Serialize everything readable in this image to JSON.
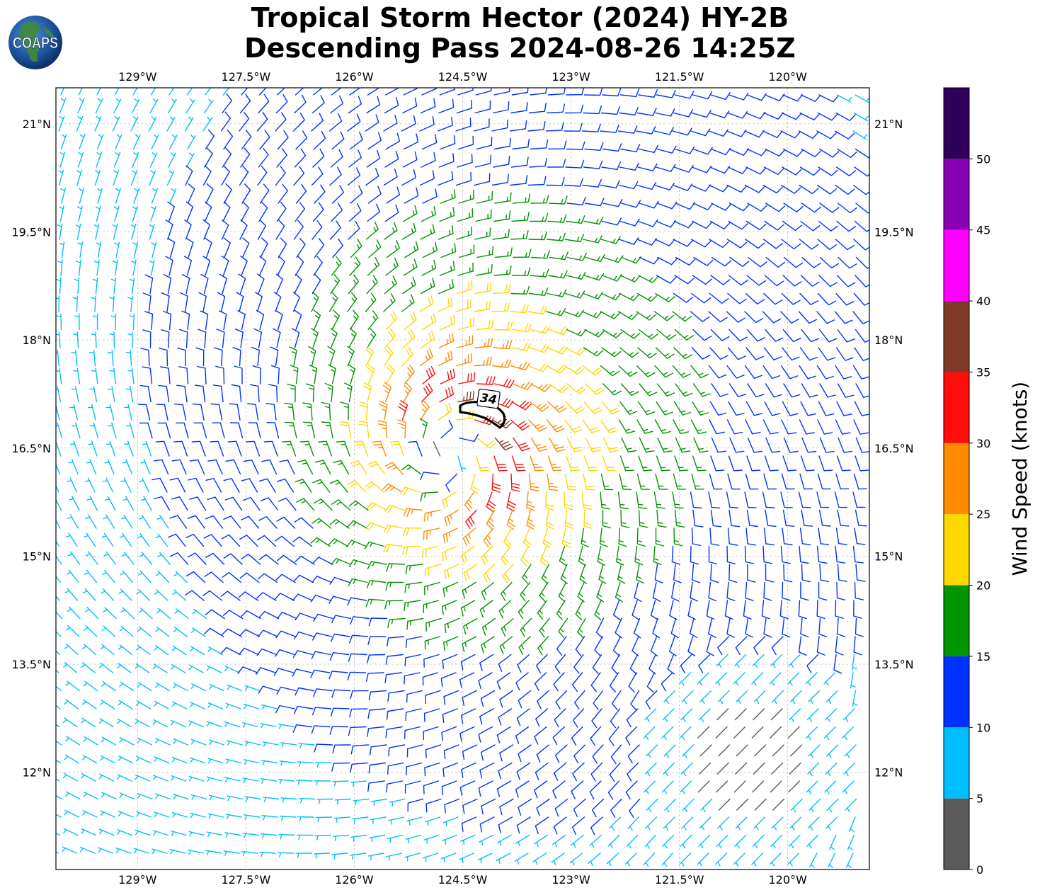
{
  "title": {
    "line1": "Tropical Storm Hector (2024) HY-2B",
    "line2": "Descending Pass 2024-08-26 14:25Z"
  },
  "logo": {
    "text": "COAPS",
    "icon": "globe-icon"
  },
  "map": {
    "lon_labels": [
      "129°W",
      "127.5°W",
      "126°W",
      "124.5°W",
      "123°W",
      "121.5°W",
      "120°W"
    ],
    "lon_values": [
      -129,
      -127.5,
      -126,
      -124.5,
      -123,
      -121.5,
      -120
    ],
    "lat_labels": [
      "21°N",
      "19.5°N",
      "18°N",
      "16.5°N",
      "15°N",
      "13.5°N",
      "12°N"
    ],
    "lat_values": [
      21,
      19.5,
      18,
      16.5,
      15,
      13.5,
      12
    ],
    "lon_range": [
      -130.13,
      -118.87
    ],
    "lat_range": [
      10.65,
      21.5
    ],
    "storm_center": {
      "lon": -124.7,
      "lat": 16.4
    },
    "contour_label": "34",
    "gridlines": true
  },
  "colorbar": {
    "label": "Wind Speed (knots)",
    "ticks": [
      "0",
      "5",
      "10",
      "15",
      "20",
      "25",
      "30",
      "35",
      "40",
      "45",
      "50"
    ],
    "bins": [
      {
        "min": 0,
        "max": 5,
        "color": "#5a5a5a"
      },
      {
        "min": 5,
        "max": 10,
        "color": "#00bfff"
      },
      {
        "min": 10,
        "max": 15,
        "color": "#0032ff"
      },
      {
        "min": 15,
        "max": 20,
        "color": "#009600"
      },
      {
        "min": 20,
        "max": 25,
        "color": "#ffd700"
      },
      {
        "min": 25,
        "max": 30,
        "color": "#ff8c00"
      },
      {
        "min": 30,
        "max": 35,
        "color": "#ff0d0d"
      },
      {
        "min": 35,
        "max": 40,
        "color": "#7f3b28"
      },
      {
        "min": 40,
        "max": 45,
        "color": "#ff00ff"
      },
      {
        "min": 45,
        "max": 50,
        "color": "#8a00b5"
      },
      {
        "min": 50,
        "max": 55,
        "color": "#2e005a"
      }
    ]
  }
}
